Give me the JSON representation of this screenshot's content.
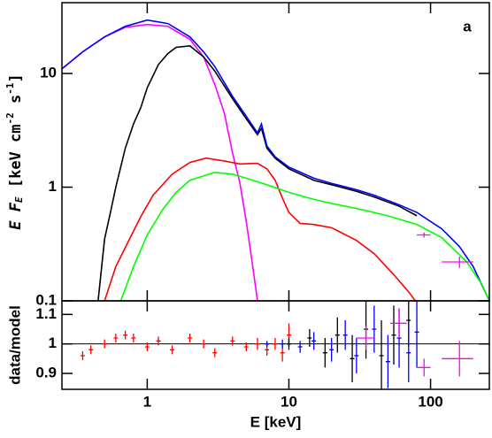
{
  "chart_data": [
    {
      "type": "line",
      "annotation": "a",
      "xscale": "log",
      "yscale": "log",
      "xlim": [
        0.25,
        260
      ],
      "ylim": [
        0.1,
        42
      ],
      "xticks": [
        1,
        10,
        100
      ],
      "yticks": [
        0.1,
        1,
        10
      ],
      "ylabel_parts": [
        "E F",
        "E",
        " [keV cm",
        "-2",
        " s",
        "-1",
        "]"
      ],
      "series": [
        {
          "color": "#ff00ff",
          "style": "line",
          "x": [
            0.25,
            0.35,
            0.5,
            0.7,
            1,
            1.4,
            2,
            2.5,
            3,
            3.5,
            4,
            4.5,
            5,
            5.5,
            6
          ],
          "values": [
            11,
            15.5,
            21,
            25.5,
            27,
            26,
            20,
            14,
            8,
            4.5,
            2,
            1.1,
            0.5,
            0.22,
            0.1
          ]
        },
        {
          "color": "#000000",
          "style": "line",
          "x": [
            0.45,
            0.5,
            0.55,
            0.6,
            0.7,
            0.8,
            0.9,
            1,
            1.2,
            1.4,
            1.6,
            2,
            2.5,
            3,
            4,
            5,
            6,
            6.4,
            7,
            8,
            10,
            15,
            20,
            30,
            40,
            60,
            80
          ],
          "values": [
            0.1,
            0.35,
            0.6,
            1,
            2.2,
            3.6,
            5,
            7.5,
            12,
            15,
            17,
            17.5,
            14,
            10.5,
            6,
            4,
            2.9,
            3.3,
            2.2,
            1.8,
            1.45,
            1.15,
            1.05,
            0.92,
            0.82,
            0.68,
            0.56
          ]
        },
        {
          "color": "#0000ff",
          "style": "line",
          "x": [
            0.25,
            0.35,
            0.5,
            0.7,
            1,
            1.4,
            2,
            2.5,
            3,
            4,
            5,
            6,
            6.4,
            7,
            8,
            10,
            15,
            20,
            30,
            40,
            60,
            80,
            120,
            160,
            200,
            260
          ],
          "values": [
            11,
            15.5,
            21,
            26,
            29.5,
            27.5,
            21,
            15.5,
            11.5,
            6.3,
            4.2,
            3,
            3.6,
            2.3,
            1.85,
            1.5,
            1.2,
            1.08,
            0.95,
            0.85,
            0.7,
            0.6,
            0.43,
            0.3,
            0.2,
            0.1
          ]
        },
        {
          "color": "#ff0000",
          "style": "line",
          "x": [
            0.5,
            0.6,
            0.75,
            0.9,
            1.1,
            1.5,
            2,
            2.6,
            3.5,
            4.5,
            6,
            7,
            8,
            9,
            10,
            12,
            15,
            20,
            30,
            40,
            55,
            70,
            78
          ],
          "values": [
            0.1,
            0.2,
            0.35,
            0.55,
            0.85,
            1.3,
            1.65,
            1.8,
            1.7,
            1.6,
            1.62,
            1.45,
            1.15,
            0.8,
            0.6,
            0.48,
            0.47,
            0.44,
            0.34,
            0.26,
            0.17,
            0.12,
            0.1
          ]
        },
        {
          "color": "#00ff00",
          "style": "line",
          "x": [
            0.65,
            0.8,
            1,
            1.3,
            1.6,
            2,
            3,
            4,
            5,
            7,
            10,
            15,
            20,
            30,
            50,
            80,
            120,
            180,
            230,
            260
          ],
          "values": [
            0.1,
            0.2,
            0.38,
            0.65,
            0.9,
            1.15,
            1.35,
            1.3,
            1.2,
            1.05,
            0.9,
            0.78,
            0.72,
            0.65,
            0.56,
            0.47,
            0.36,
            0.22,
            0.14,
            0.1
          ]
        },
        {
          "color": "#ff00ff",
          "style": "points",
          "x": [
            90,
            160
          ],
          "values": [
            0.38,
            0.22
          ],
          "xerr": [
            10,
            40
          ],
          "errors": [
            0.02,
            0.025
          ]
        }
      ]
    },
    {
      "type": "scatter",
      "xscale": "log",
      "ylabel": "data/model",
      "xlabel": "E [keV]",
      "xlim": [
        0.25,
        260
      ],
      "ylim": [
        0.846,
        1.146
      ],
      "xticks": [
        1,
        10,
        100
      ],
      "yticks": [
        0.9,
        1,
        1.1
      ],
      "reference_line": 1,
      "series": [
        {
          "color": "#ff0000",
          "x": [
            0.35,
            0.4,
            0.5,
            0.6,
            0.7,
            0.8,
            1,
            1.2,
            1.5,
            2,
            2.5,
            3,
            4,
            5,
            6,
            7,
            8,
            9,
            10
          ],
          "values": [
            0.96,
            0.98,
            1.0,
            1.02,
            1.03,
            1.02,
            0.99,
            1.01,
            0.98,
            1.02,
            1.0,
            0.97,
            1.01,
            0.99,
            1.0,
            0.98,
            1.0,
            0.97,
            1.03
          ],
          "errors": [
            0.015,
            0.015,
            0.015,
            0.015,
            0.015,
            0.015,
            0.015,
            0.015,
            0.015,
            0.015,
            0.015,
            0.015,
            0.015,
            0.015,
            0.02,
            0.02,
            0.02,
            0.03,
            0.04
          ]
        },
        {
          "color": "#000000",
          "x": [
            10,
            14,
            18,
            22,
            28,
            35,
            45,
            55,
            70
          ],
          "values": [
            1.0,
            1.02,
            0.97,
            1.03,
            0.95,
            1.05,
            0.96,
            1.03,
            1.08
          ],
          "errors": [
            0.02,
            0.03,
            0.05,
            0.06,
            0.08,
            0.1,
            0.12,
            0.1,
            0.09
          ]
        },
        {
          "color": "#0000ff",
          "x": [
            7,
            9,
            12,
            15,
            20,
            25,
            30,
            40,
            50,
            60,
            70,
            80
          ],
          "values": [
            1.0,
            1.0,
            0.99,
            1.01,
            0.98,
            1.03,
            0.96,
            1.05,
            0.94,
            1.02,
            0.97,
            1.04
          ],
          "errors": [
            0.01,
            0.015,
            0.02,
            0.03,
            0.04,
            0.05,
            0.06,
            0.08,
            0.09,
            0.1,
            0.1,
            0.12
          ]
        },
        {
          "color": "#ff00ff",
          "x": [
            35,
            60,
            90,
            160
          ],
          "values": [
            1.02,
            1.07,
            0.92,
            0.95
          ],
          "errors": [
            0.04,
            0.05,
            0.03,
            0.06
          ],
          "xerr": [
            5,
            8,
            10,
            40
          ]
        }
      ]
    }
  ]
}
